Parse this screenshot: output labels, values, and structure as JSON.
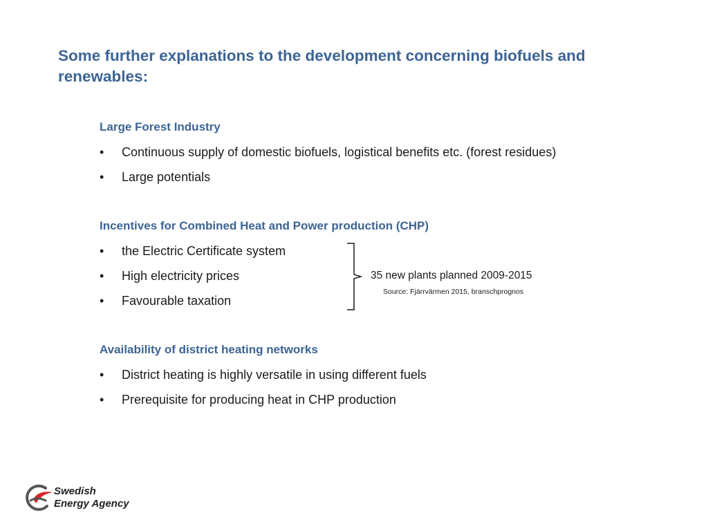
{
  "slide": {
    "title": "Some further explanations to the development concerning biofuels and renewables:",
    "sections": [
      {
        "heading": "Large Forest Industry",
        "bullets": [
          "Continuous supply of domestic biofuels, logistical benefits etc. (forest residues)",
          "Large potentials"
        ]
      },
      {
        "heading": "Incentives for Combined Heat and Power production (CHP)",
        "bullets": [
          "the Electric Certificate system",
          "High electricity prices",
          "Favourable taxation"
        ]
      },
      {
        "heading": "Availability of district heating networks",
        "bullets": [
          "District heating is highly versatile in using different fuels",
          "Prerequisite for producing heat in CHP production"
        ]
      }
    ],
    "bullet_symbol": "•",
    "annotation": "35 new plants planned 2009-2015",
    "source": "Source: Fjärrvärmen 2015, branschprognos"
  },
  "logo": {
    "line1": "Swedish",
    "line2": "Energy Agency",
    "icon": "swedish-energy-agency-logo-icon"
  },
  "colors": {
    "heading": "#3c6494",
    "text": "#1a1a1a",
    "logo_red": "#d8262c",
    "logo_gray": "#555555"
  }
}
